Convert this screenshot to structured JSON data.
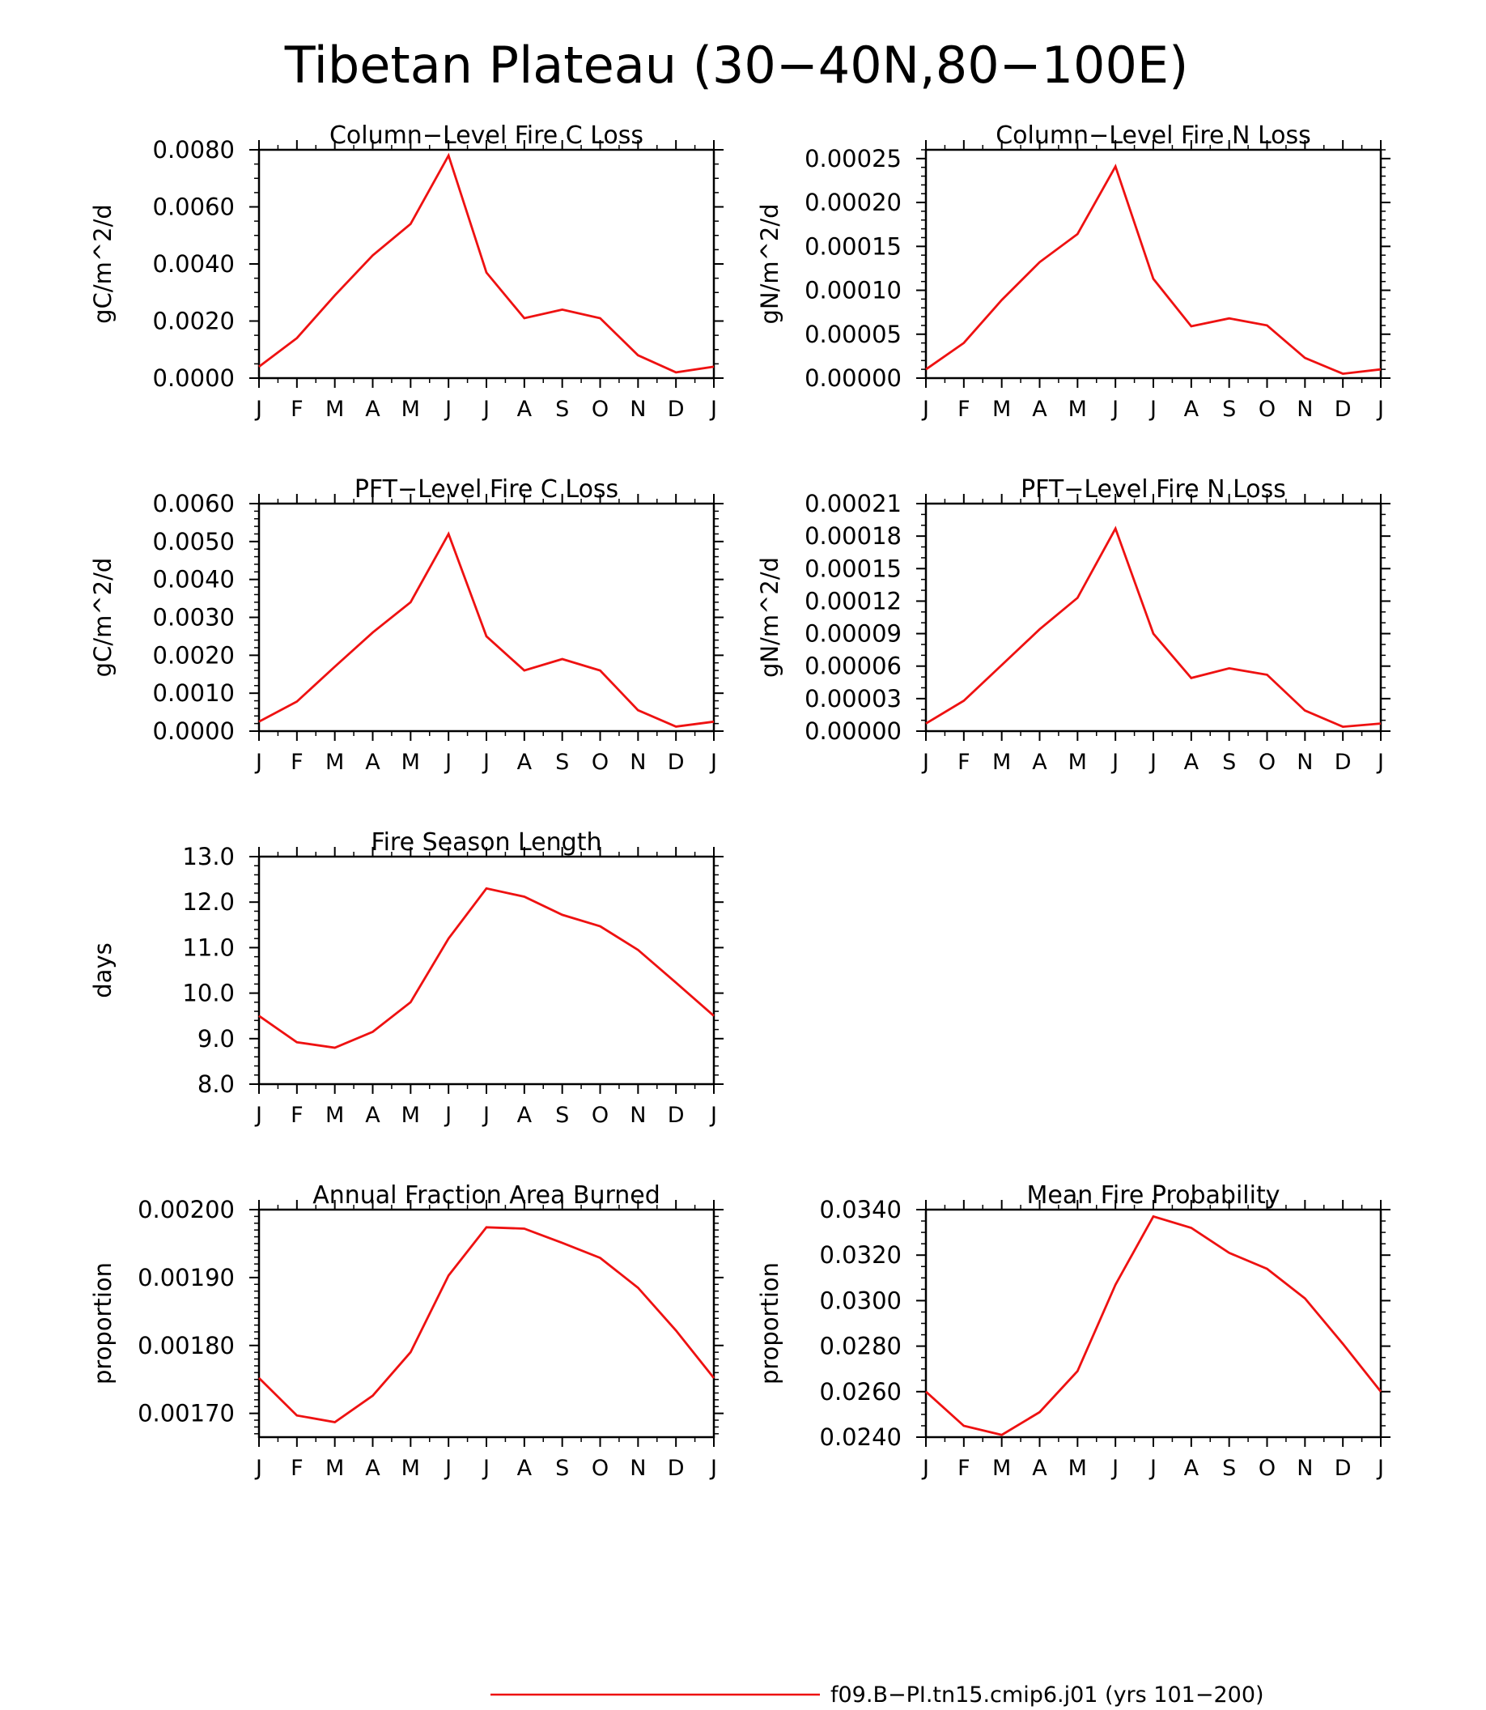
{
  "page": {
    "title": "Tibetan Plateau (30−40N,80−100E)"
  },
  "legend": {
    "label": "f09.B−PI.tn15.cmip6.j01 (yrs 101−200)",
    "color": "#ee1111"
  },
  "colors": {
    "line": "#ee1111",
    "axis": "#000000"
  },
  "chart_data": [
    {
      "type": "line",
      "title": "Column−Level Fire C Loss",
      "ylabel": "gC/m^2/d",
      "categories": [
        "J",
        "F",
        "M",
        "A",
        "M",
        "J",
        "J",
        "A",
        "S",
        "O",
        "N",
        "D",
        "J"
      ],
      "values": [
        0.0004,
        0.0014,
        0.0029,
        0.0043,
        0.0054,
        0.0078,
        0.0037,
        0.0021,
        0.0024,
        0.0021,
        0.0008,
        0.0002,
        0.0004
      ],
      "ylim": [
        0.0,
        0.008
      ],
      "yticks": [
        0.0,
        0.002,
        0.004,
        0.006,
        0.008
      ],
      "ytick_labels": [
        "0.0000",
        "0.0020",
        "0.0040",
        "0.0060",
        "0.0080"
      ],
      "yminor": 0.0005
    },
    {
      "type": "line",
      "title": "Column−Level Fire N Loss",
      "ylabel": "gN/m^2/d",
      "categories": [
        "J",
        "F",
        "M",
        "A",
        "M",
        "J",
        "J",
        "A",
        "S",
        "O",
        "N",
        "D",
        "J"
      ],
      "values": [
        1e-05,
        4e-05,
        8.9e-05,
        0.000132,
        0.000164,
        0.000241,
        0.000113,
        5.9e-05,
        6.8e-05,
        6e-05,
        2.3e-05,
        5e-06,
        1e-05
      ],
      "ylim": [
        0.0,
        0.00026
      ],
      "yticks": [
        0.0,
        5e-05,
        0.0001,
        0.00015,
        0.0002,
        0.00025
      ],
      "ytick_labels": [
        "0.00000",
        "0.00005",
        "0.00010",
        "0.00015",
        "0.00020",
        "0.00025"
      ],
      "yminor": 1e-05
    },
    {
      "type": "line",
      "title": "PFT−Level Fire C Loss",
      "ylabel": "gC/m^2/d",
      "categories": [
        "J",
        "F",
        "M",
        "A",
        "M",
        "J",
        "J",
        "A",
        "S",
        "O",
        "N",
        "D",
        "J"
      ],
      "values": [
        0.00025,
        0.00078,
        0.0017,
        0.0026,
        0.0034,
        0.0052,
        0.0025,
        0.0016,
        0.0019,
        0.0016,
        0.00055,
        0.00012,
        0.00025
      ],
      "ylim": [
        0.0,
        0.006
      ],
      "yticks": [
        0.0,
        0.001,
        0.002,
        0.003,
        0.004,
        0.005,
        0.006
      ],
      "ytick_labels": [
        "0.0000",
        "0.0010",
        "0.0020",
        "0.0030",
        "0.0040",
        "0.0050",
        "0.0060"
      ],
      "yminor": 0.0002
    },
    {
      "type": "line",
      "title": "PFT−Level Fire N Loss",
      "ylabel": "gN/m^2/d",
      "categories": [
        "J",
        "F",
        "M",
        "A",
        "M",
        "J",
        "J",
        "A",
        "S",
        "O",
        "N",
        "D",
        "J"
      ],
      "values": [
        7e-06,
        2.8e-05,
        6.1e-05,
        9.4e-05,
        0.000123,
        0.000187,
        9e-05,
        4.9e-05,
        5.8e-05,
        5.2e-05,
        1.9e-05,
        4e-06,
        7e-06
      ],
      "ylim": [
        0.0,
        0.00021
      ],
      "yticks": [
        0.0,
        3e-05,
        6e-05,
        9e-05,
        0.00012,
        0.00015,
        0.00018,
        0.00021
      ],
      "ytick_labels": [
        "0.00000",
        "0.00003",
        "0.00006",
        "0.00009",
        "0.00012",
        "0.00015",
        "0.00018",
        "0.00021"
      ],
      "yminor": 1e-05
    },
    {
      "type": "line",
      "title": "Fire Season Length",
      "ylabel": "days",
      "categories": [
        "J",
        "F",
        "M",
        "A",
        "M",
        "J",
        "J",
        "A",
        "S",
        "O",
        "N",
        "D",
        "J"
      ],
      "values": [
        9.5,
        8.92,
        8.8,
        9.15,
        9.8,
        11.2,
        12.3,
        12.12,
        11.72,
        11.47,
        10.95,
        10.23,
        9.5
      ],
      "ylim": [
        8.0,
        13.0
      ],
      "yticks": [
        8.0,
        9.0,
        10.0,
        11.0,
        12.0,
        13.0
      ],
      "ytick_labels": [
        "8.0",
        "9.0",
        "10.0",
        "11.0",
        "12.0",
        "13.0"
      ],
      "yminor": 0.2
    },
    {
      "type": "line",
      "title": "Annual Fraction Area Burned",
      "ylabel": "proportion",
      "categories": [
        "J",
        "F",
        "M",
        "A",
        "M",
        "J",
        "J",
        "A",
        "S",
        "O",
        "N",
        "D",
        "J"
      ],
      "values": [
        0.001752,
        0.001697,
        0.001687,
        0.001726,
        0.00179,
        0.001903,
        0.001974,
        0.001972,
        0.001951,
        0.001929,
        0.001885,
        0.001822,
        0.001752
      ],
      "ylim": [
        0.001665,
        0.002
      ],
      "yticks": [
        0.0017,
        0.0018,
        0.0019,
        0.002
      ],
      "ytick_labels": [
        "0.00170",
        "0.00180",
        "0.00190",
        "0.00200"
      ],
      "yminor": 1e-05
    },
    {
      "type": "line",
      "title": "Mean Fire Probability",
      "ylabel": "proportion",
      "categories": [
        "J",
        "F",
        "M",
        "A",
        "M",
        "J",
        "J",
        "A",
        "S",
        "O",
        "N",
        "D",
        "J"
      ],
      "values": [
        0.026,
        0.0245,
        0.0241,
        0.0251,
        0.0269,
        0.0307,
        0.0337,
        0.0332,
        0.0321,
        0.0314,
        0.0301,
        0.0281,
        0.026
      ],
      "ylim": [
        0.024,
        0.034
      ],
      "yticks": [
        0.024,
        0.026,
        0.028,
        0.03,
        0.032,
        0.034
      ],
      "ytick_labels": [
        "0.0240",
        "0.0260",
        "0.0280",
        "0.0300",
        "0.0320",
        "0.0340"
      ],
      "yminor": 0.0005
    }
  ]
}
